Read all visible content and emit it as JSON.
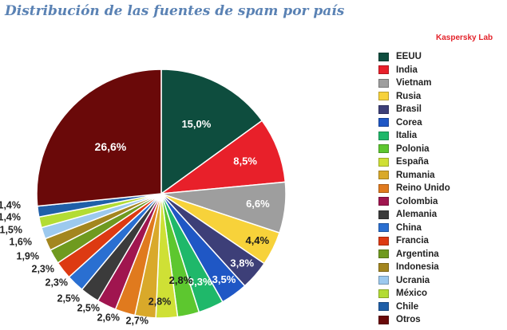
{
  "header": {
    "title": "Distribución de las fuentes de spam por país",
    "brand": "Kaspersky Lab",
    "brand_color": "#e3222a"
  },
  "chart_data": {
    "type": "pie",
    "title": "Distribución de las fuentes de spam por país",
    "legend_position": "right",
    "slices": [
      {
        "label": "EEUU",
        "value": 15.0,
        "display": "15,0%",
        "color": "#0e4d3e"
      },
      {
        "label": "India",
        "value": 8.5,
        "display": "8,5%",
        "color": "#e8202a"
      },
      {
        "label": "Vietnam",
        "value": 6.6,
        "display": "6,6%",
        "color": "#9e9e9e"
      },
      {
        "label": "Rusia",
        "value": 4.4,
        "display": "4,4%",
        "color": "#f7d23a"
      },
      {
        "label": "Brasil",
        "value": 3.8,
        "display": "3,8%",
        "color": "#3d3f78"
      },
      {
        "label": "Corea",
        "value": 3.5,
        "display": "3,5%",
        "color": "#1f57c5"
      },
      {
        "label": "Italia",
        "value": 3.3,
        "display": "3,3%",
        "color": "#1fb86a"
      },
      {
        "label": "Polonia",
        "value": 2.8,
        "display": "2,8%",
        "color": "#5dc72f"
      },
      {
        "label": "España",
        "value": 2.8,
        "display": "2,8%",
        "color": "#cfe035"
      },
      {
        "label": "Rumania",
        "value": 2.7,
        "display": "2,7%",
        "color": "#d9a92a"
      },
      {
        "label": "Reino Unido",
        "value": 2.6,
        "display": "2,6%",
        "color": "#e07a1e"
      },
      {
        "label": "Colombia",
        "value": 2.5,
        "display": "2,5%",
        "color": "#a0154f"
      },
      {
        "label": "Alemania",
        "value": 2.5,
        "display": "2,5%",
        "color": "#3b3b3b"
      },
      {
        "label": "China",
        "value": 2.3,
        "display": "2,3%",
        "color": "#2a6fd1"
      },
      {
        "label": "Francia",
        "value": 2.3,
        "display": "2,3%",
        "color": "#dd3a12"
      },
      {
        "label": "Argentina",
        "value": 1.9,
        "display": "1,9%",
        "color": "#6f9a1f"
      },
      {
        "label": "Indonesia",
        "value": 1.6,
        "display": "1,6%",
        "color": "#a3861f"
      },
      {
        "label": "Ucrania",
        "value": 1.5,
        "display": "1,5%",
        "color": "#9cc9ee"
      },
      {
        "label": "México",
        "value": 1.4,
        "display": "1,4%",
        "color": "#b3dc34"
      },
      {
        "label": "Chile",
        "value": 1.4,
        "display": "1,4%",
        "color": "#1f5fa8"
      },
      {
        "label": "Otros",
        "value": 26.6,
        "display": "26,6%",
        "color": "#6a0909"
      }
    ]
  }
}
